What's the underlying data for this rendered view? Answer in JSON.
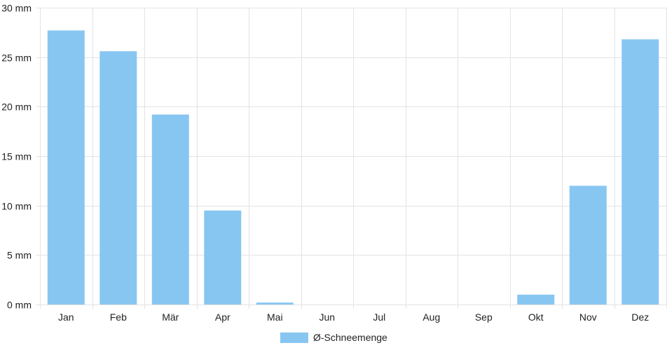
{
  "chart_data": {
    "type": "bar",
    "categories": [
      "Jan",
      "Feb",
      "Mär",
      "Apr",
      "Mai",
      "Jun",
      "Jul",
      "Aug",
      "Sep",
      "Okt",
      "Nov",
      "Dez"
    ],
    "series": [
      {
        "name": "Ø-Schneemenge",
        "values": [
          27.7,
          25.6,
          19.2,
          9.5,
          0.2,
          0,
          0,
          0,
          0,
          1.0,
          12.0,
          26.8
        ],
        "color": "#88c6f2"
      }
    ],
    "unit": "mm",
    "ylim": [
      0,
      30
    ],
    "yticks": [
      0,
      5,
      10,
      15,
      20,
      25,
      30
    ],
    "ytick_labels": [
      "0 mm",
      "5 mm",
      "10 mm",
      "15 mm",
      "20 mm",
      "25 mm",
      "30 mm"
    ],
    "grid": true,
    "grid_color": "#e3e3e3",
    "legend_position": "bottom-center"
  }
}
